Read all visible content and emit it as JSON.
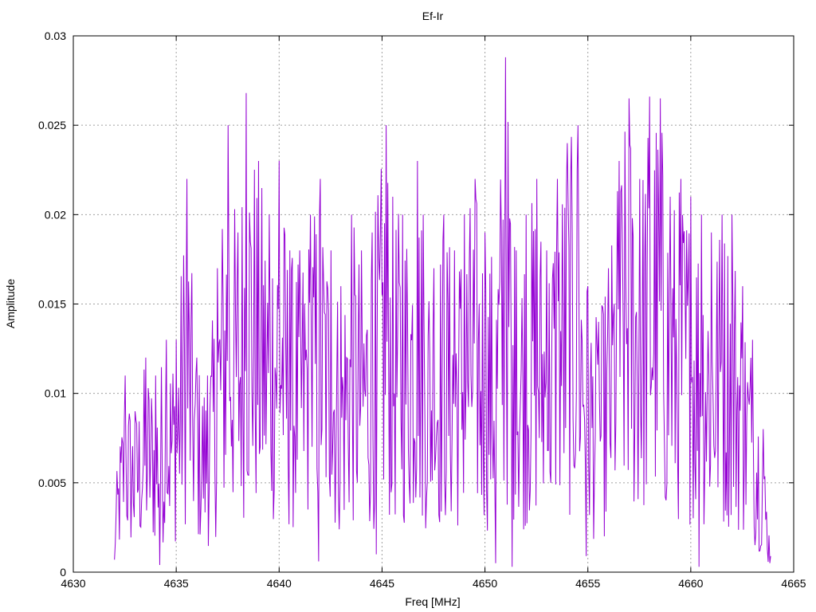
{
  "chart_data": {
    "type": "line",
    "title": "Ef-Ir",
    "xlabel": "Freq [MHz]",
    "ylabel": "Amplitude",
    "xlim": [
      4630,
      4665
    ],
    "ylim": [
      0,
      0.03
    ],
    "x_ticks": [
      4630,
      4635,
      4640,
      4645,
      4650,
      4655,
      4660,
      4665
    ],
    "x_tick_labels": [
      "4630",
      "4635",
      "4640",
      "4645",
      "4650",
      "4655",
      "4660",
      "4665"
    ],
    "y_ticks": [
      0,
      0.005,
      0.01,
      0.015,
      0.02,
      0.025,
      0.03
    ],
    "y_tick_labels": [
      "0",
      "0.005",
      "0.01",
      "0.015",
      "0.02",
      "0.025",
      "0.03"
    ],
    "grid": true,
    "legend": false,
    "series": [
      {
        "color": "#9400d3",
        "x_start": 4632.0,
        "x_end": 4663.9,
        "x_step": 0.04,
        "envelope_peaks": [
          [
            4632.0,
            0.004
          ],
          [
            4632.5,
            0.011
          ],
          [
            4633.0,
            0.009
          ],
          [
            4633.5,
            0.012
          ],
          [
            4634.0,
            0.011
          ],
          [
            4634.5,
            0.013
          ],
          [
            4635.0,
            0.013
          ],
          [
            4635.5,
            0.022
          ],
          [
            4636.0,
            0.012
          ],
          [
            4636.5,
            0.011
          ],
          [
            4637.0,
            0.017
          ],
          [
            4637.5,
            0.025
          ],
          [
            4638.0,
            0.019
          ],
          [
            4638.4,
            0.0268
          ],
          [
            4639.0,
            0.023
          ],
          [
            4639.5,
            0.02
          ],
          [
            4640.0,
            0.023
          ],
          [
            4640.5,
            0.018
          ],
          [
            4641.0,
            0.018
          ],
          [
            4641.5,
            0.02
          ],
          [
            4642.0,
            0.022
          ],
          [
            4642.5,
            0.018
          ],
          [
            4643.0,
            0.016
          ],
          [
            4643.5,
            0.02
          ],
          [
            4644.0,
            0.018
          ],
          [
            4644.5,
            0.019
          ],
          [
            4645.2,
            0.025
          ],
          [
            4645.5,
            0.021
          ],
          [
            4646.0,
            0.02
          ],
          [
            4646.7,
            0.023
          ],
          [
            4647.0,
            0.02
          ],
          [
            4647.5,
            0.017
          ],
          [
            4648.0,
            0.02
          ],
          [
            4648.5,
            0.018
          ],
          [
            4649.0,
            0.02
          ],
          [
            4649.5,
            0.022
          ],
          [
            4650.0,
            0.019
          ],
          [
            4650.5,
            0.018
          ],
          [
            4651.0,
            0.0288
          ],
          [
            4651.5,
            0.018
          ],
          [
            4652.0,
            0.02
          ],
          [
            4652.5,
            0.022
          ],
          [
            4653.0,
            0.018
          ],
          [
            4653.5,
            0.022
          ],
          [
            4654.0,
            0.024
          ],
          [
            4654.5,
            0.025
          ],
          [
            4655.0,
            0.016
          ],
          [
            4655.5,
            0.014
          ],
          [
            4656.0,
            0.017
          ],
          [
            4656.5,
            0.023
          ],
          [
            4657.0,
            0.0265
          ],
          [
            4657.5,
            0.022
          ],
          [
            4658.0,
            0.0266
          ],
          [
            4658.5,
            0.0265
          ],
          [
            4659.0,
            0.021
          ],
          [
            4659.5,
            0.022
          ],
          [
            4660.0,
            0.021
          ],
          [
            4660.5,
            0.02
          ],
          [
            4661.0,
            0.019
          ],
          [
            4661.5,
            0.02
          ],
          [
            4662.0,
            0.02
          ],
          [
            4662.5,
            0.016
          ],
          [
            4663.0,
            0.013
          ],
          [
            4663.5,
            0.008
          ],
          [
            4663.9,
            0.001
          ]
        ],
        "min_values": [
          [
            4632.0,
            0.0007
          ],
          [
            4634.2,
            0.0004
          ],
          [
            4641.9,
            0.0006
          ],
          [
            4644.7,
            0.001
          ],
          [
            4650.5,
            0.0005
          ],
          [
            4651.3,
            0.0003
          ],
          [
            4654.9,
            0.0009
          ],
          [
            4660.4,
            0.0003
          ],
          [
            4663.9,
            0.0009
          ]
        ]
      }
    ]
  }
}
